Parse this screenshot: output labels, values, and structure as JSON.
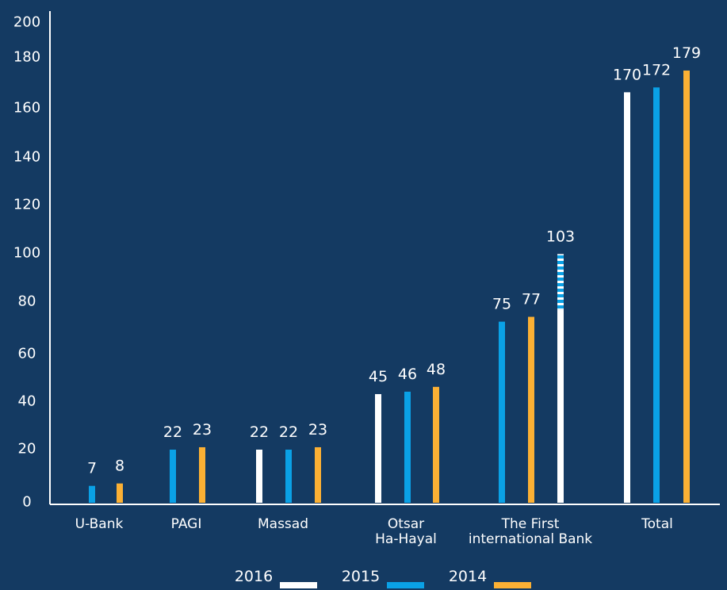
{
  "chart_data": {
    "type": "bar",
    "ylim": [
      0,
      200
    ],
    "yticks": [
      "0",
      "20",
      "40",
      "60",
      "80",
      "100",
      "120",
      "140",
      "160",
      "180",
      "200"
    ],
    "colors": {
      "2016": "#ffffff",
      "2015": "#0aa1e6",
      "2014": "#fbb034",
      "background": "#143a62"
    },
    "categories": [
      {
        "lines": [
          "U-Bank"
        ],
        "bars": [
          {
            "series": "2015",
            "value": 7,
            "label": "7"
          },
          {
            "series": "2014",
            "value": 8,
            "label": "8"
          }
        ]
      },
      {
        "lines": [
          "PAGI"
        ],
        "bars": [
          {
            "series": "2015",
            "value": 22,
            "label": "22"
          },
          {
            "series": "2014",
            "value": 23,
            "label": "23"
          }
        ]
      },
      {
        "lines": [
          "Massad"
        ],
        "bars": [
          {
            "series": "2016",
            "value": 22,
            "label": "22"
          },
          {
            "series": "2015",
            "value": 22,
            "label": "22"
          },
          {
            "series": "2014",
            "value": 23,
            "label": "23"
          }
        ]
      },
      {
        "lines": [
          "Otsar",
          "Ha-Hayal"
        ],
        "bars": [
          {
            "series": "2016",
            "value": 45,
            "label": "45"
          },
          {
            "series": "2015",
            "value": 46,
            "label": "46"
          },
          {
            "series": "2014",
            "value": 48,
            "label": "48"
          }
        ]
      },
      {
        "lines": [
          "The First",
          "international Bank"
        ],
        "bars": [
          {
            "series": "2015",
            "value": 75,
            "label": "75"
          },
          {
            "series": "2014",
            "value": 77,
            "label": "77"
          },
          {
            "series": "2016",
            "value": 103,
            "label": "103",
            "striped_from": 80
          }
        ]
      },
      {
        "lines": [
          "Total"
        ],
        "bars": [
          {
            "series": "2016",
            "value": 170,
            "label": "170"
          },
          {
            "series": "2015",
            "value": 172,
            "label": "172"
          },
          {
            "series": "2014",
            "value": 179,
            "label": "179"
          }
        ]
      }
    ],
    "legend": [
      {
        "name": "2016",
        "color": "#ffffff"
      },
      {
        "name": "2015",
        "color": "#0aa1e6"
      },
      {
        "name": "2014",
        "color": "#fbb034"
      }
    ],
    "legend_position": "bottom-center"
  }
}
